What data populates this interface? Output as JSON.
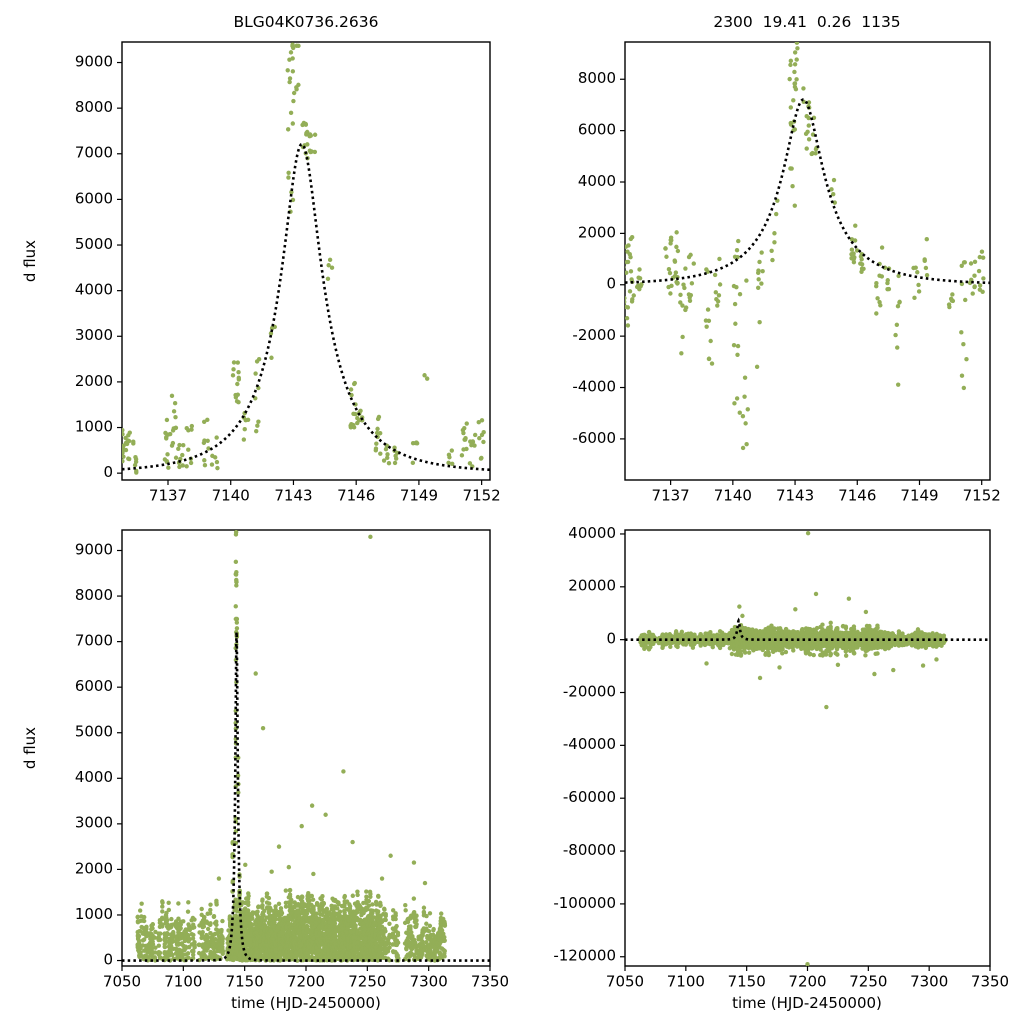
{
  "colors": {
    "marker": "#93ae57",
    "model": "#000000",
    "axis": "#000000",
    "text": "#000000",
    "background": "#ffffff"
  },
  "strips_format": "[x_center, y_min, y_max, n_points]",
  "outliers_format": "[x, y]",
  "chart_data": [
    {
      "id": "top-left",
      "type": "scatter",
      "title": "BLG04K0736.2636",
      "xlabel": "",
      "ylabel": "d flux",
      "xlim": [
        7134.8,
        7152.4
      ],
      "ylim": [
        -150,
        9450
      ],
      "xticks": [
        7137,
        7140,
        7143,
        7146,
        7149,
        7152
      ],
      "yticks": [
        0,
        1000,
        2000,
        3000,
        4000,
        5000,
        6000,
        7000,
        8000,
        9000
      ],
      "model": {
        "type": "paczynski",
        "fs": 2450,
        "u0": 0.26,
        "t0": 7143.4,
        "tE": 3.6,
        "baseline": 0,
        "peak_flux": 7212
      },
      "scatter": {
        "strips": [
          [
            7134.8,
            0,
            1150,
            12
          ],
          [
            7135.1,
            -50,
            900,
            10
          ],
          [
            7135.45,
            0,
            700,
            8
          ],
          [
            7136.9,
            100,
            1250,
            10
          ],
          [
            7137.25,
            50,
            1700,
            12
          ],
          [
            7137.6,
            0,
            900,
            9
          ],
          [
            7138.0,
            100,
            1100,
            8
          ],
          [
            7138.85,
            150,
            1200,
            8
          ],
          [
            7139.25,
            0,
            800,
            6
          ],
          [
            7140.25,
            1500,
            2600,
            13
          ],
          [
            7140.7,
            700,
            1500,
            6
          ],
          [
            7141.3,
            400,
            2500,
            8
          ],
          [
            7142.0,
            2400,
            3300,
            4
          ],
          [
            7142.85,
            5600,
            9450,
            16
          ],
          [
            7143.1,
            8300,
            9450,
            9
          ],
          [
            7143.55,
            6900,
            7700,
            12
          ],
          [
            7143.9,
            7000,
            7600,
            8
          ],
          [
            7144.8,
            4100,
            4700,
            4
          ],
          [
            7145.85,
            900,
            2000,
            12
          ],
          [
            7146.2,
            800,
            1500,
            8
          ],
          [
            7147.05,
            400,
            1300,
            10
          ],
          [
            7147.45,
            200,
            900,
            6
          ],
          [
            7147.95,
            100,
            800,
            6
          ],
          [
            7148.85,
            200,
            700,
            5
          ],
          [
            7149.35,
            2050,
            2200,
            2
          ],
          [
            7150.55,
            100,
            600,
            5
          ],
          [
            7151.15,
            200,
            1300,
            10
          ],
          [
            7151.55,
            100,
            900,
            8
          ],
          [
            7151.95,
            300,
            1400,
            8
          ]
        ]
      }
    },
    {
      "id": "top-right",
      "type": "scatter",
      "title": "2300  19.41  0.26  1135",
      "xlabel": "",
      "ylabel": "",
      "xlim": [
        7134.8,
        7152.4
      ],
      "ylim": [
        -7600,
        9450
      ],
      "xticks": [
        7137,
        7140,
        7143,
        7146,
        7149,
        7152
      ],
      "yticks": [
        -6000,
        -4000,
        -2000,
        0,
        2000,
        4000,
        6000,
        8000
      ],
      "model": {
        "type": "paczynski",
        "fs": 2450,
        "u0": 0.26,
        "t0": 7143.4,
        "tE": 3.6,
        "baseline": 0,
        "peak_flux": 7212
      },
      "scatter": {
        "strips": [
          [
            7134.8,
            -1600,
            1500,
            14
          ],
          [
            7135.1,
            -700,
            1900,
            12
          ],
          [
            7135.45,
            -300,
            1200,
            8
          ],
          [
            7136.9,
            -500,
            2000,
            12
          ],
          [
            7137.25,
            -400,
            2100,
            12
          ],
          [
            7137.6,
            -2700,
            900,
            10
          ],
          [
            7138.0,
            -700,
            1500,
            8
          ],
          [
            7138.85,
            -3700,
            1300,
            10
          ],
          [
            7139.25,
            -900,
            1100,
            8
          ],
          [
            7140.2,
            -5200,
            1900,
            15
          ],
          [
            7140.6,
            -7000,
            600,
            8
          ],
          [
            7141.3,
            -4800,
            2600,
            10
          ],
          [
            7142.0,
            300,
            3500,
            6
          ],
          [
            7142.85,
            3000,
            9450,
            16
          ],
          [
            7143.1,
            7600,
            9450,
            9
          ],
          [
            7143.55,
            5300,
            7700,
            12
          ],
          [
            7143.9,
            5000,
            7200,
            8
          ],
          [
            7144.8,
            2700,
            4100,
            4
          ],
          [
            7145.85,
            800,
            2400,
            12
          ],
          [
            7146.2,
            500,
            1700,
            8
          ],
          [
            7147.05,
            -1300,
            1500,
            10
          ],
          [
            7147.45,
            -400,
            1000,
            6
          ],
          [
            7147.95,
            -4300,
            800,
            8
          ],
          [
            7148.85,
            -700,
            900,
            6
          ],
          [
            7149.35,
            300,
            2200,
            5
          ],
          [
            7150.55,
            -1100,
            600,
            6
          ],
          [
            7151.15,
            -4700,
            1400,
            10
          ],
          [
            7151.55,
            -1000,
            1100,
            8
          ],
          [
            7151.95,
            -400,
            1500,
            8
          ]
        ]
      }
    },
    {
      "id": "bottom-left",
      "type": "scatter",
      "title": "",
      "xlabel": "time (HJD-2450000)",
      "ylabel": "d flux",
      "xlim": [
        7050,
        7350
      ],
      "ylim": [
        -120,
        9450
      ],
      "xticks": [
        7050,
        7100,
        7150,
        7200,
        7250,
        7300,
        7350
      ],
      "yticks": [
        0,
        1000,
        2000,
        3000,
        4000,
        5000,
        6000,
        7000,
        8000,
        9000
      ],
      "model": {
        "type": "paczynski",
        "fs": 2450,
        "u0": 0.26,
        "t0": 7143.4,
        "tE": 3.6,
        "baseline": 0,
        "peak_flux": 7212
      },
      "scatter": {
        "forests": [
          {
            "x0": 7063,
            "x1": 7313,
            "step": 1.0,
            "skip": 0.18,
            "n": [
              5,
              13
            ],
            "ylo": 0,
            "yhi": [
              500,
              1400
            ],
            "jitter": 0.55
          },
          {
            "x0": 7138,
            "x1": 7262,
            "step": 0.55,
            "skip": 0.1,
            "n": [
              5,
              15
            ],
            "ylo": 0,
            "yhi": [
              600,
              1600
            ],
            "jitter": 0.4
          }
        ],
        "strips": [
          [
            7140.2,
            1500,
            2600,
            10
          ],
          [
            7142.8,
            2500,
            9450,
            18
          ],
          [
            7143.2,
            6000,
            9450,
            10
          ],
          [
            7143.6,
            6900,
            7700,
            8
          ],
          [
            7144.8,
            3600,
            4700,
            4
          ],
          [
            7145.9,
            900,
            2400,
            10
          ]
        ],
        "outliers": [
          [
            7252.5,
            9300
          ],
          [
            7159,
            6300
          ],
          [
            7165,
            5100
          ],
          [
            7230.5,
            4150
          ],
          [
            7205,
            3400
          ],
          [
            7216,
            3200
          ],
          [
            7196.5,
            2950
          ],
          [
            7238,
            2600
          ],
          [
            7269,
            2300
          ],
          [
            7178,
            2500
          ],
          [
            7150.5,
            2100
          ],
          [
            7186,
            2050
          ],
          [
            7206,
            1900
          ],
          [
            7262,
            1800
          ],
          [
            7288,
            2150
          ],
          [
            7297,
            1700
          ],
          [
            7172,
            1950
          ],
          [
            7129,
            1800
          ]
        ]
      }
    },
    {
      "id": "bottom-right",
      "type": "scatter",
      "title": "",
      "xlabel": "time (HJD-2450000)",
      "ylabel": "",
      "xlim": [
        7050,
        7350
      ],
      "ylim": [
        -123500,
        41500
      ],
      "xticks": [
        7050,
        7100,
        7150,
        7200,
        7250,
        7300,
        7350
      ],
      "yticks": [
        -120000,
        -100000,
        -80000,
        -60000,
        -40000,
        -20000,
        0,
        20000,
        40000
      ],
      "model": {
        "type": "paczynski",
        "fs": 2450,
        "u0": 0.26,
        "t0": 7143.4,
        "tE": 3.6,
        "baseline": 0,
        "peak_flux": 7212
      },
      "scatter": {
        "forests": [
          {
            "mode": "sym",
            "x0": 7063,
            "x1": 7313,
            "step": 1.0,
            "skip": 0.15,
            "n": [
              6,
              16
            ],
            "h": [
              900,
              4500
            ],
            "jitter": 0.55
          },
          {
            "mode": "sym",
            "x0": 7138,
            "x1": 7268,
            "step": 0.6,
            "skip": 0.1,
            "n": [
              6,
              18
            ],
            "h": [
              1200,
              7000
            ],
            "jitter": 0.45
          }
        ],
        "outliers": [
          [
            7200.5,
            40300
          ],
          [
            7207,
            17300
          ],
          [
            7234,
            15500
          ],
          [
            7144,
            12500
          ],
          [
            7190,
            11500
          ],
          [
            7146.5,
            9000
          ],
          [
            7248,
            10500
          ],
          [
            7215.5,
            -25500
          ],
          [
            7161,
            -14500
          ],
          [
            7255,
            -13000
          ],
          [
            7270.5,
            -11500
          ],
          [
            7177,
            -10500
          ],
          [
            7117,
            -9000
          ],
          [
            7295,
            -9800
          ],
          [
            7306,
            -7500
          ],
          [
            7225,
            -9500
          ],
          [
            7200,
            -122800
          ]
        ]
      }
    }
  ]
}
